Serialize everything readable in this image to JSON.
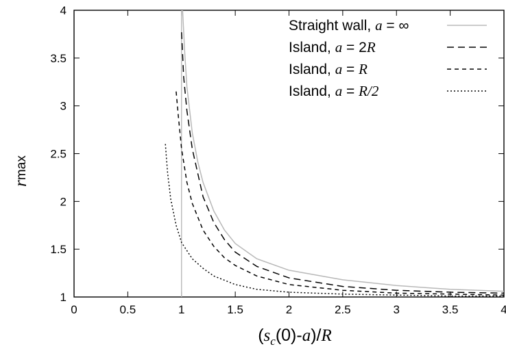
{
  "chart_data": {
    "type": "line",
    "title": "",
    "xlabel": {
      "open": "(",
      "s": "s",
      "sub": "c",
      "mid": "(0)-",
      "a": "a",
      "close": ")/",
      "R": "R"
    },
    "ylabel": {
      "r": "r",
      "sub": "max"
    },
    "xlim": [
      0,
      4
    ],
    "ylim": [
      1,
      4
    ],
    "xticks": [
      "0",
      "0.5",
      "1",
      "1.5",
      "2",
      "2.5",
      "3",
      "3.5",
      "4"
    ],
    "yticks": [
      "1",
      "1.5",
      "2",
      "2.5",
      "3",
      "3.5",
      "4"
    ],
    "grid": false,
    "legend_position": "top-right",
    "vertical_line": {
      "x": 1
    },
    "series": [
      {
        "key": "straight",
        "legend": {
          "pre": "Straight wall, ",
          "var": "a",
          "post": " = ∞",
          "tail": ""
        },
        "color": "#b8b8b8",
        "dash": "",
        "x": [
          1.01,
          1.03,
          1.05,
          1.1,
          1.15,
          1.2,
          1.3,
          1.4,
          1.5,
          1.7,
          2.0,
          2.5,
          3.0,
          3.5,
          4.0
        ],
        "y": [
          4.0,
          3.55,
          3.2,
          2.72,
          2.42,
          2.2,
          1.9,
          1.7,
          1.56,
          1.4,
          1.28,
          1.18,
          1.12,
          1.08,
          1.06
        ]
      },
      {
        "key": "island_2R",
        "legend": {
          "pre": "Island, ",
          "var": "a",
          "post": " = 2",
          "tail": "R"
        },
        "color": "#000000",
        "dash": "10,6",
        "x": [
          1.0,
          1.02,
          1.05,
          1.1,
          1.2,
          1.3,
          1.4,
          1.5,
          1.7,
          2.0,
          2.5,
          3.0,
          3.5,
          4.0
        ],
        "y": [
          3.77,
          3.3,
          2.95,
          2.55,
          2.05,
          1.78,
          1.6,
          1.47,
          1.32,
          1.2,
          1.11,
          1.07,
          1.05,
          1.04
        ]
      },
      {
        "key": "island_R",
        "legend": {
          "pre": "Island, ",
          "var": "a",
          "post": " = ",
          "tail": "R"
        },
        "color": "#000000",
        "dash": "6,5",
        "x": [
          0.95,
          0.97,
          1.0,
          1.05,
          1.1,
          1.2,
          1.3,
          1.4,
          1.5,
          1.7,
          2.0,
          2.5,
          3.0,
          3.5,
          4.0
        ],
        "y": [
          3.15,
          2.9,
          2.55,
          2.2,
          1.98,
          1.7,
          1.53,
          1.41,
          1.33,
          1.22,
          1.13,
          1.07,
          1.04,
          1.03,
          1.02
        ]
      },
      {
        "key": "island_R2",
        "legend": {
          "pre": "Island, ",
          "var": "a",
          "post": " = ",
          "tail": "R/2"
        },
        "color": "#000000",
        "dash": "2,3",
        "x": [
          0.85,
          0.87,
          0.9,
          0.95,
          1.0,
          1.1,
          1.2,
          1.3,
          1.5,
          1.7,
          2.0,
          2.5,
          3.0,
          3.5,
          4.0
        ],
        "y": [
          2.6,
          2.3,
          2.02,
          1.75,
          1.57,
          1.4,
          1.3,
          1.22,
          1.13,
          1.08,
          1.05,
          1.03,
          1.02,
          1.01,
          1.01
        ]
      }
    ]
  }
}
